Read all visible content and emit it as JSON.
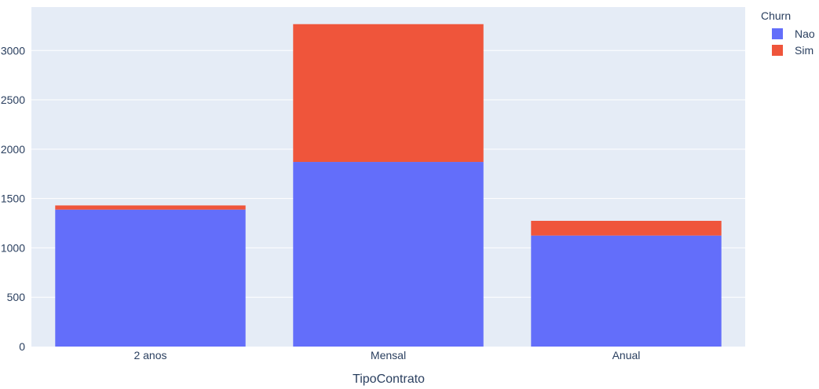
{
  "chart_data": {
    "type": "bar",
    "barmode": "stack",
    "categories": [
      "2 anos",
      "Mensal",
      "Anual"
    ],
    "series": [
      {
        "name": "Nao",
        "values": [
          1388,
          1871,
          1125
        ],
        "color": "#636efa"
      },
      {
        "name": "Sim",
        "values": [
          42,
          1396,
          149
        ],
        "color": "#ef553b"
      }
    ],
    "xlabel": "TipoContrato",
    "ylabel": "",
    "ylim": [
      0,
      3440
    ],
    "yticks": [
      0,
      500,
      1000,
      1500,
      2000,
      2500,
      3000
    ],
    "ytick_labels": [
      "0",
      "500",
      "1000",
      "1500",
      "2000",
      "2500",
      "3000"
    ],
    "grid": true,
    "legend": {
      "title": "Churn",
      "placement": "top-right"
    },
    "colors": {
      "plot_bg": "#e5ecf6",
      "grid": "#ffffff",
      "text": "#2a3f5f"
    }
  }
}
